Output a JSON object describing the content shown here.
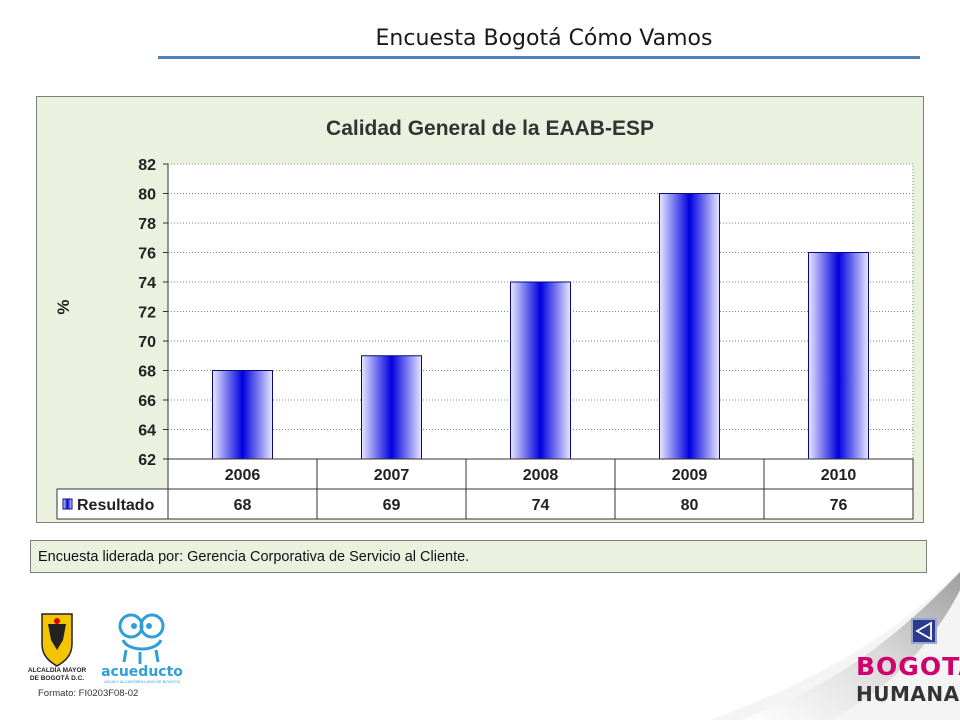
{
  "slide": {
    "title": "Encuesta Bogotá Cómo Vamos",
    "footnote": "Encuesta liderada por: Gerencia Corporativa de Servicio al Cliente.",
    "formato": "Formato: FI0203F08-02",
    "logos": {
      "alcaldia_line1": "ALCALDÍA MAYOR",
      "alcaldia_line2": "DE BOGOTÁ D.C.",
      "acueducto": "acueducto",
      "acueducto_sub": "AGUA Y ALCANTARILLADO DE BOGOTÁ",
      "brand_line1": "BOGOTÁ",
      "brand_line2": "HUMANA"
    }
  },
  "colors": {
    "bar_dark": "#0000e0",
    "bar_light": "#e8e8ff",
    "frame_bg": "#eaf2df",
    "rule": "#4f81bd",
    "brand": "#d0006f"
  },
  "chart_data": {
    "type": "bar",
    "title": "Calidad General de la EAAB-ESP",
    "ylabel": "%",
    "categories": [
      "2006",
      "2007",
      "2008",
      "2009",
      "2010"
    ],
    "series": [
      {
        "name": "Resultado",
        "values": [
          68,
          69,
          74,
          80,
          76
        ]
      }
    ],
    "ylim": [
      62,
      82
    ],
    "yticks": [
      62,
      64,
      66,
      68,
      70,
      72,
      74,
      76,
      78,
      80,
      82
    ],
    "grid": true,
    "data_table": true
  }
}
